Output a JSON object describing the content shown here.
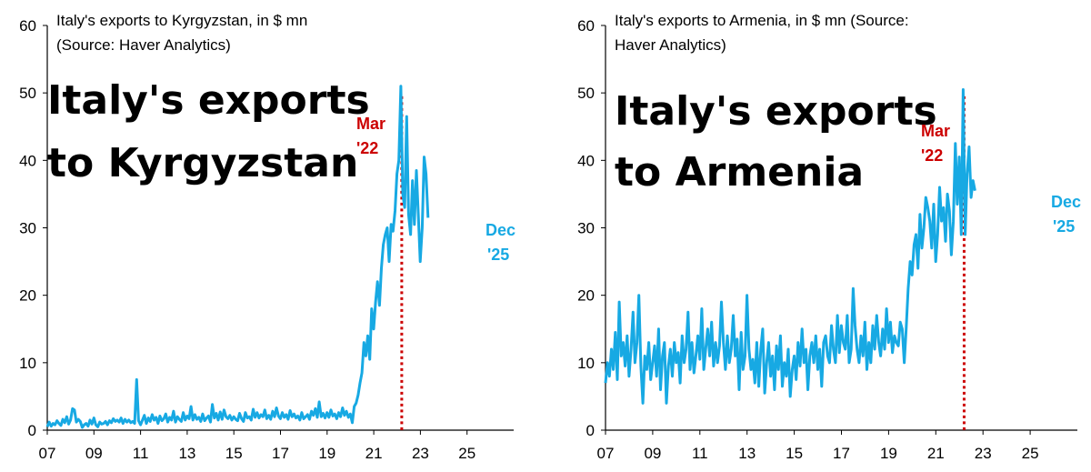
{
  "colors": {
    "series": "#17a9e3",
    "marker": "#cc0000",
    "axis": "#000000"
  },
  "chart_data": [
    {
      "type": "line",
      "title_lines": [
        "Italy's exports to Kyrgyzstan, in $ mn",
        "(Source: Haver Analytics)"
      ],
      "overlay_lines": [
        "Italy's exports",
        "to Kyrgyzstan"
      ],
      "marker_label": [
        "Mar",
        "'22"
      ],
      "end_label": [
        "Dec",
        "'25"
      ],
      "ylim": [
        0,
        60
      ],
      "yticks": [
        "0",
        "10",
        "20",
        "30",
        "40",
        "50",
        "60"
      ],
      "xticks": [
        "07",
        "09",
        "11",
        "13",
        "15",
        "17",
        "19",
        "21",
        "23",
        "25"
      ],
      "xlim": [
        2007.0,
        2027.0
      ],
      "marker_x": 2022.2,
      "series": [
        {
          "x_start": 2007.0,
          "x_step": 0.0833,
          "values": [
            0.5,
            1.2,
            0.6,
            1.0,
            0.8,
            1.4,
            1.0,
            0.7,
            1.6,
            1.1,
            2.0,
            0.9,
            1.5,
            3.2,
            3.0,
            1.2,
            1.6,
            1.3,
            0.4,
            0.8,
            1.0,
            0.6,
            1.5,
            0.9,
            1.8,
            0.8,
            0.5,
            1.2,
            0.9,
            1.0,
            1.3,
            0.8,
            1.4,
            1.1,
            1.7,
            1.3,
            1.5,
            1.2,
            1.8,
            1.0,
            1.6,
            1.2,
            1.5,
            1.1,
            1.3,
            1.0,
            7.5,
            1.4,
            0.8,
            1.5,
            2.2,
            1.0,
            1.8,
            1.3,
            2.3,
            1.5,
            1.9,
            1.0,
            2.1,
            1.4,
            1.7,
            2.4,
            1.2,
            1.9,
            1.5,
            2.8,
            1.2,
            2.0,
            1.6,
            1.3,
            2.6,
            1.5,
            2.1,
            1.7,
            3.5,
            1.5,
            2.3,
            1.6,
            1.9,
            1.3,
            2.4,
            1.4,
            1.8,
            2.1,
            1.2,
            3.8,
            1.8,
            2.5,
            1.5,
            2.7,
            1.6,
            3.0,
            2.0,
            1.7,
            2.2,
            1.5,
            2.0,
            1.6,
            1.4,
            2.5,
            1.7,
            1.3,
            2.6,
            1.8,
            2.0,
            1.5,
            3.1,
            1.9,
            2.6,
            1.8,
            2.3,
            2.0,
            3.0,
            1.7,
            2.2,
            1.6,
            2.8,
            2.0,
            3.3,
            2.1,
            1.7,
            2.6,
            1.9,
            2.3,
            1.6,
            2.9,
            2.0,
            2.4,
            1.8,
            2.1,
            1.5,
            2.6,
            1.7,
            2.0,
            2.3,
            1.6,
            2.8,
            2.2,
            3.2,
            1.9,
            4.2,
            2.0,
            2.5,
            1.8,
            2.6,
            1.9,
            3.0,
            2.1,
            2.4,
            1.7,
            2.6,
            2.0,
            3.3,
            2.2,
            2.8,
            1.9,
            2.4,
            1.1,
            3.5,
            4.0,
            5.2,
            7.0,
            8.5,
            13.0,
            11.0,
            14.0,
            10.5,
            18.0,
            15.0,
            19.0,
            22.0,
            18.5,
            24.0,
            27.5,
            29.0,
            30.0,
            25.0,
            30.5,
            29.5,
            32.5,
            38.0,
            40.0,
            51.0,
            35.0,
            33.0,
            46.5,
            32.0,
            29.0,
            37.0,
            30.5,
            38.5,
            32.0,
            25.0,
            30.0,
            40.5,
            38.0,
            31.5
          ]
        }
      ]
    },
    {
      "type": "line",
      "title_lines": [
        "Italy's exports to Armenia, in $ mn (Source:",
        "Haver Analytics)"
      ],
      "overlay_lines": [
        "Italy's exports",
        "to Armenia"
      ],
      "marker_label": [
        "Mar",
        "'22"
      ],
      "end_label": [
        "Dec",
        "'25"
      ],
      "ylim": [
        0,
        60
      ],
      "yticks": [
        "0",
        "10",
        "20",
        "30",
        "40",
        "50",
        "60"
      ],
      "xticks": [
        "07",
        "09",
        "11",
        "13",
        "15",
        "17",
        "19",
        "21",
        "23",
        "25"
      ],
      "xlim": [
        2007.0,
        2027.0
      ],
      "marker_x": 2022.2,
      "series": [
        {
          "x_start": 2007.0,
          "x_step": 0.0833,
          "values": [
            7.0,
            10.0,
            8.0,
            12.0,
            9.0,
            14.5,
            7.5,
            19.0,
            11.0,
            13.0,
            9.5,
            14.0,
            8.0,
            12.0,
            17.5,
            10.0,
            13.0,
            20.0,
            9.5,
            4.0,
            11.0,
            9.0,
            13.0,
            7.5,
            10.0,
            12.5,
            8.0,
            15.0,
            6.0,
            11.0,
            13.0,
            4.0,
            9.5,
            12.0,
            8.0,
            13.0,
            10.0,
            11.5,
            7.0,
            14.0,
            10.0,
            12.0,
            17.5,
            9.0,
            13.0,
            8.5,
            11.0,
            14.0,
            10.5,
            18.0,
            9.0,
            12.0,
            15.0,
            11.0,
            16.0,
            9.5,
            13.0,
            10.0,
            12.5,
            19.0,
            13.0,
            9.0,
            14.0,
            10.0,
            12.0,
            17.0,
            11.0,
            13.5,
            6.0,
            14.5,
            9.0,
            11.0,
            20.0,
            12.0,
            9.0,
            10.5,
            7.0,
            13.0,
            6.5,
            12.0,
            15.0,
            5.5,
            10.0,
            13.0,
            8.0,
            11.0,
            6.0,
            12.5,
            9.0,
            14.0,
            6.5,
            10.0,
            8.0,
            12.0,
            5.0,
            9.0,
            11.0,
            7.5,
            13.0,
            9.5,
            15.0,
            10.0,
            12.0,
            6.0,
            11.0,
            13.0,
            10.0,
            14.0,
            9.0,
            12.0,
            6.5,
            13.0,
            14.0,
            11.0,
            10.0,
            15.5,
            12.0,
            10.0,
            17.0,
            11.5,
            15.5,
            13.0,
            12.0,
            17.0,
            10.0,
            12.0,
            21.0,
            15.5,
            12.0,
            10.0,
            14.0,
            11.0,
            16.0,
            9.0,
            13.0,
            10.0,
            15.5,
            12.0,
            17.0,
            13.0,
            11.0,
            15.0,
            12.0,
            18.0,
            13.0,
            16.0,
            11.5,
            14.0,
            13.0,
            12.5,
            16.0,
            15.0,
            10.0,
            15.0,
            21.0,
            25.0,
            23.0,
            27.5,
            29.0,
            24.0,
            32.0,
            27.0,
            30.0,
            34.5,
            33.0,
            31.0,
            27.0,
            33.5,
            25.0,
            29.0,
            36.0,
            31.0,
            33.0,
            28.0,
            35.0,
            32.5,
            26.0,
            31.0,
            42.5,
            33.5,
            40.5,
            29.0,
            50.5,
            29.0,
            38.0,
            42.0,
            34.5,
            37.0,
            35.5
          ]
        }
      ]
    }
  ]
}
